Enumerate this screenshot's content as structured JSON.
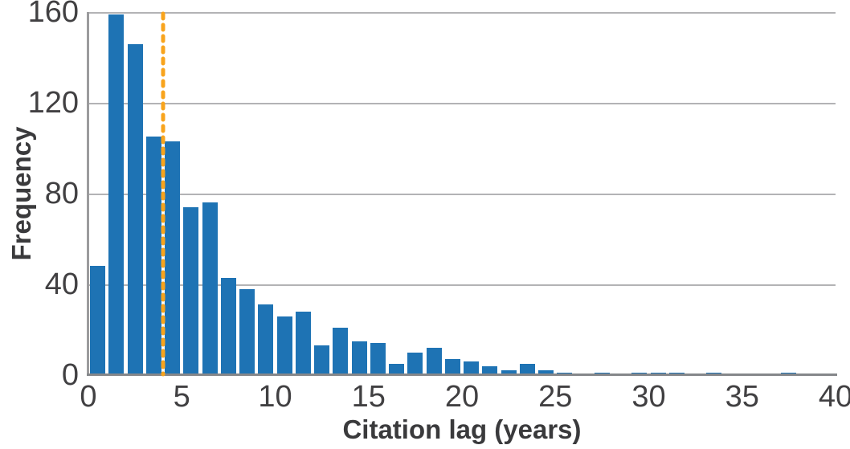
{
  "chart_data": {
    "type": "bar",
    "subtype": "histogram",
    "title": "",
    "xlabel": "Citation lag (years)",
    "ylabel": "Frequency",
    "xlim": [
      0,
      40
    ],
    "ylim": [
      0,
      160
    ],
    "x_ticks": [
      0,
      5,
      10,
      15,
      20,
      25,
      30,
      35,
      40
    ],
    "y_ticks": [
      0,
      40,
      80,
      120,
      160
    ],
    "grid": "horizontal",
    "legend": "none",
    "bin_width": 1,
    "bin_start": 0,
    "bar_color": "#1e73b4",
    "values": [
      48,
      159,
      146,
      105,
      103,
      74,
      76,
      43,
      38,
      31,
      26,
      28,
      13,
      21,
      15,
      14,
      5,
      10,
      12,
      7,
      6,
      4,
      2,
      5,
      2,
      1,
      0,
      1,
      0,
      1,
      1,
      1,
      0,
      1,
      0,
      0,
      0,
      1,
      0,
      0
    ],
    "marker_line": {
      "x": 4,
      "style": "dashed",
      "color": "#f8a41d",
      "orientation": "vertical"
    }
  }
}
